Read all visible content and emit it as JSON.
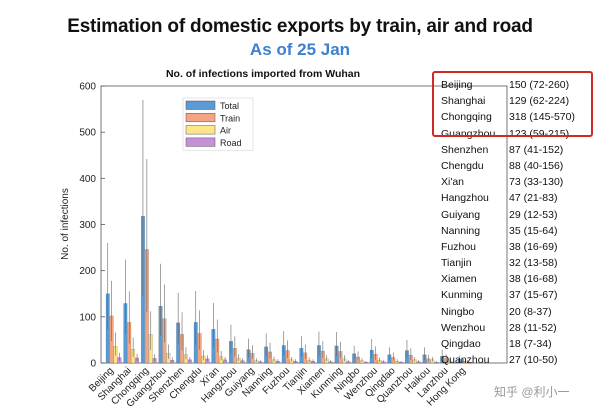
{
  "header": {
    "title": "Estimation of domestic exports by train, air and road",
    "subtitle": "As of 25 Jan"
  },
  "side_table": {
    "highlighted_count": 4,
    "rows": [
      {
        "city": "Beijing",
        "value": "150 (72-260)"
      },
      {
        "city": "Shanghai",
        "value": "129 (62-224)"
      },
      {
        "city": "Chongqing",
        "value": "318 (145-570)"
      },
      {
        "city": "Guangzhou",
        "value": "123 (59-215)"
      },
      {
        "city": "Shenzhen",
        "value": "87 (41-152)"
      },
      {
        "city": "Chengdu",
        "value": "88 (40-156)"
      },
      {
        "city": "Xi'an",
        "value": "73 (33-130)"
      },
      {
        "city": "Hangzhou",
        "value": "47 (21-83)"
      },
      {
        "city": "Guiyang",
        "value": "29 (12-53)"
      },
      {
        "city": "Nanning",
        "value": "35 (15-64)"
      },
      {
        "city": "Fuzhou",
        "value": "38 (16-69)"
      },
      {
        "city": "Tianjin",
        "value": "32 (13-58)"
      },
      {
        "city": "Xiamen",
        "value": "38 (16-68)"
      },
      {
        "city": "Kunming",
        "value": "37 (15-67)"
      },
      {
        "city": "Ningbo",
        "value": "20 (8-37)"
      },
      {
        "city": "Wenzhou",
        "value": "28 (11-52)"
      },
      {
        "city": "Qingdao",
        "value": "18 (7-34)"
      },
      {
        "city": "Quanzhou",
        "value": "27 (10-50)"
      }
    ]
  },
  "watermark": "知乎 @利小一",
  "colors": {
    "total": "#5b9bd5",
    "train": "#f4a582",
    "air": "#fde68a",
    "road": "#c690d8",
    "highlight": "#d22828",
    "subtitle": "#3e7fd0"
  },
  "chart_data": {
    "type": "bar",
    "title": "No. of infections imported from Wuhan",
    "xlabel": "",
    "ylabel": "No. of infections",
    "ylim": [
      0,
      600
    ],
    "yticks": [
      0,
      100,
      200,
      300,
      400,
      500,
      600
    ],
    "legend_position": "top-left",
    "categories": [
      "Beijing",
      "Shanghai",
      "Chongqing",
      "Guangzhou",
      "Shenzhen",
      "Chengdu",
      "Xi'an",
      "Hangzhou",
      "Guiyang",
      "Nanning",
      "Fuzhou",
      "Tianjin",
      "Xiamen",
      "Kunming",
      "Ningbo",
      "Wenzhou",
      "Qingdao",
      "Quanzhou",
      "Haikou",
      "Lanzhou",
      "Hong Kong"
    ],
    "series": [
      {
        "name": "Total",
        "values": [
          150,
          129,
          318,
          123,
          87,
          88,
          73,
          47,
          29,
          35,
          38,
          32,
          38,
          37,
          20,
          28,
          18,
          27,
          18,
          15,
          8
        ],
        "err_low": [
          72,
          62,
          145,
          59,
          41,
          40,
          33,
          21,
          12,
          15,
          16,
          13,
          16,
          15,
          8,
          11,
          7,
          10,
          7,
          6,
          3
        ],
        "err_high": [
          260,
          224,
          570,
          215,
          152,
          156,
          130,
          83,
          53,
          64,
          69,
          58,
          68,
          67,
          37,
          52,
          34,
          50,
          34,
          29,
          16
        ]
      },
      {
        "name": "Train",
        "values": [
          102,
          88,
          246,
          96,
          62,
          64,
          52,
          32,
          21,
          24,
          27,
          22,
          26,
          25,
          13,
          19,
          12,
          17,
          9,
          10,
          4
        ],
        "err_low": [
          48,
          42,
          110,
          45,
          28,
          29,
          23,
          14,
          9,
          10,
          11,
          9,
          11,
          10,
          5,
          7,
          5,
          6,
          3,
          4,
          1
        ],
        "err_high": [
          178,
          155,
          442,
          170,
          110,
          114,
          94,
          58,
          39,
          44,
          49,
          40,
          47,
          46,
          25,
          36,
          23,
          32,
          18,
          19,
          9
        ]
      },
      {
        "name": "Air",
        "values": [
          36,
          30,
          62,
          21,
          18,
          15,
          14,
          10,
          5,
          7,
          7,
          6,
          9,
          9,
          5,
          6,
          4,
          7,
          7,
          4,
          3
        ],
        "err_low": [
          16,
          13,
          28,
          9,
          8,
          6,
          6,
          4,
          2,
          3,
          3,
          2,
          4,
          4,
          2,
          2,
          1,
          3,
          3,
          1,
          1
        ],
        "err_high": [
          66,
          55,
          112,
          40,
          34,
          28,
          26,
          19,
          10,
          14,
          13,
          12,
          17,
          17,
          10,
          12,
          8,
          13,
          13,
          8,
          6
        ]
      },
      {
        "name": "Road",
        "values": [
          12,
          11,
          10,
          6,
          7,
          9,
          7,
          5,
          3,
          4,
          4,
          4,
          3,
          3,
          2,
          3,
          2,
          3,
          2,
          1,
          1
        ],
        "err_low": [
          5,
          4,
          4,
          2,
          3,
          4,
          3,
          2,
          1,
          1,
          1,
          1,
          1,
          1,
          0,
          1,
          0,
          1,
          0,
          0,
          0
        ],
        "err_high": [
          22,
          20,
          19,
          12,
          13,
          17,
          13,
          10,
          6,
          8,
          8,
          8,
          6,
          6,
          4,
          6,
          4,
          6,
          4,
          3,
          2
        ]
      }
    ]
  }
}
